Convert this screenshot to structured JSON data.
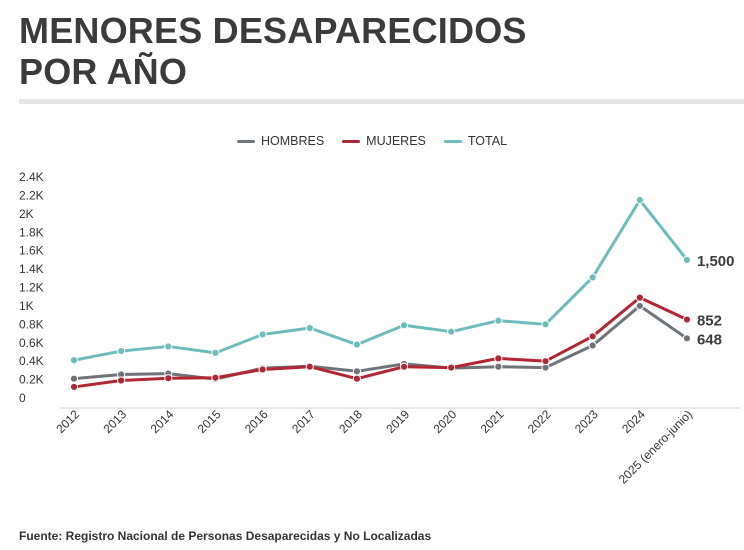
{
  "title_line1": "MENORES DESAPARECIDOS",
  "title_line2": "POR AÑO",
  "source": "Fuente: Registro Nacional de Personas Desaparecidas y No Localizadas",
  "colors": {
    "hombres": "#6e7279",
    "mujeres": "#b22532",
    "total": "#6cbcbc"
  },
  "chart_data": {
    "type": "line",
    "x": [
      "2012",
      "2013",
      "2014",
      "2015",
      "2016",
      "2017",
      "2018",
      "2019",
      "2020",
      "2021",
      "2022",
      "2023",
      "2024",
      "2025 (enero-junio)"
    ],
    "series": [
      {
        "name": "HOMBRES",
        "values": [
          210,
          255,
          265,
          205,
          325,
          345,
          290,
          370,
          325,
          340,
          330,
          570,
          1000,
          648
        ]
      },
      {
        "name": "MUJERES",
        "values": [
          120,
          190,
          215,
          220,
          310,
          340,
          210,
          340,
          330,
          430,
          400,
          670,
          1090,
          852
        ]
      },
      {
        "name": "TOTAL",
        "values": [
          410,
          510,
          560,
          490,
          690,
          760,
          580,
          790,
          720,
          840,
          800,
          1310,
          2150,
          1500
        ]
      }
    ],
    "end_labels": [
      "648",
      "852",
      "1,500"
    ],
    "y_ticks": [
      "0",
      "0.2K",
      "0.4K",
      "0.6K",
      "0.8K",
      "1K",
      "1.2K",
      "1.4K",
      "1.6K",
      "1.8K",
      "2K",
      "2.2K",
      "2.4K"
    ],
    "ylim": [
      0,
      2400
    ],
    "legend": "top-center"
  }
}
